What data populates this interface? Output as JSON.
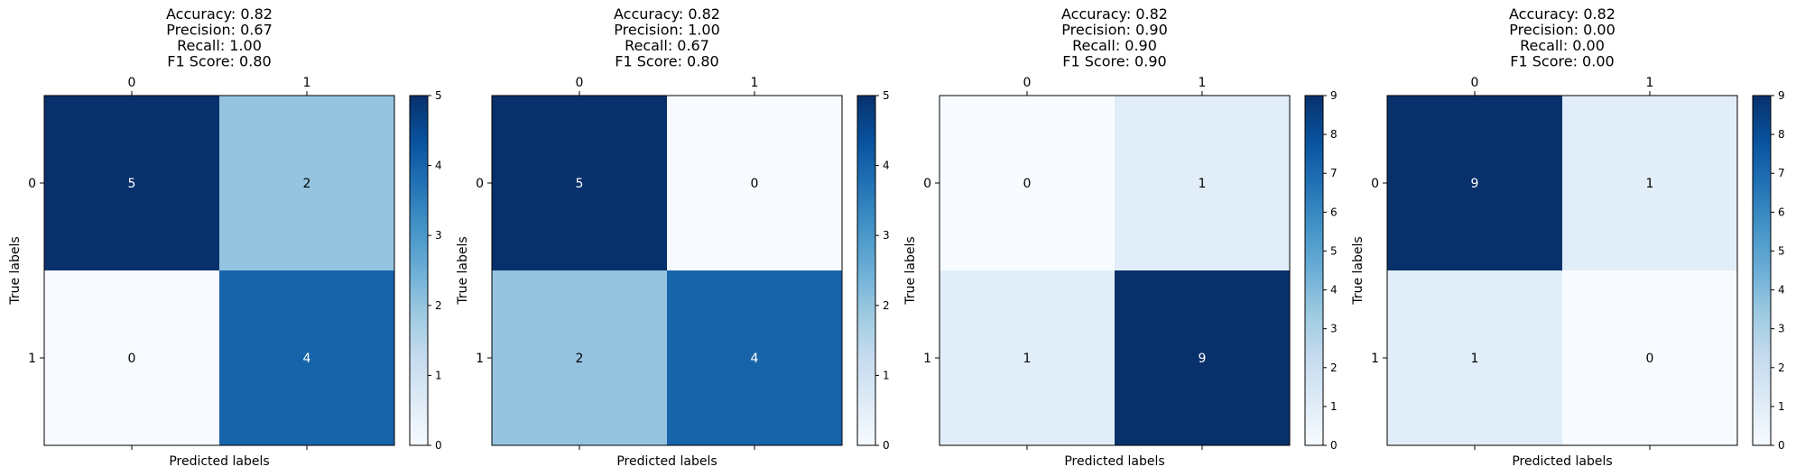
{
  "chart_data": [
    {
      "type": "heatmap",
      "title_lines": [
        "Accuracy:  0.82",
        "Precision:  0.67",
        "Recall:     1.00",
        "F1 Score:  0.80"
      ],
      "x_ticks": [
        "0",
        "1"
      ],
      "y_ticks": [
        "0",
        "1"
      ],
      "xlabel": "Predicted labels",
      "ylabel": "True labels",
      "matrix": [
        [
          5,
          2
        ],
        [
          0,
          4
        ]
      ],
      "vmin": 0,
      "vmax": 5,
      "colorbar_ticks": [
        "0",
        "1",
        "2",
        "3",
        "4",
        "5"
      ],
      "colormap": "Blues"
    },
    {
      "type": "heatmap",
      "title_lines": [
        "Accuracy:  0.82",
        "Precision:  1.00",
        "Recall:     0.67",
        "F1 Score:  0.80"
      ],
      "x_ticks": [
        "0",
        "1"
      ],
      "y_ticks": [
        "0",
        "1"
      ],
      "xlabel": "Predicted labels",
      "ylabel": "True labels",
      "matrix": [
        [
          5,
          0
        ],
        [
          2,
          4
        ]
      ],
      "vmin": 0,
      "vmax": 5,
      "colorbar_ticks": [
        "0",
        "1",
        "2",
        "3",
        "4",
        "5"
      ],
      "colormap": "Blues"
    },
    {
      "type": "heatmap",
      "title_lines": [
        "Accuracy:  0.82",
        "Precision:  0.90",
        "Recall:     0.90",
        "F1 Score:  0.90"
      ],
      "x_ticks": [
        "0",
        "1"
      ],
      "y_ticks": [
        "0",
        "1"
      ],
      "xlabel": "Predicted labels",
      "ylabel": "True labels",
      "matrix": [
        [
          0,
          1
        ],
        [
          1,
          9
        ]
      ],
      "vmin": 0,
      "vmax": 9,
      "colorbar_ticks": [
        "0",
        "1",
        "2",
        "3",
        "4",
        "5",
        "6",
        "7",
        "8",
        "9"
      ],
      "colormap": "Blues"
    },
    {
      "type": "heatmap",
      "title_lines": [
        "Accuracy:  0.82",
        "Precision:  0.00",
        "Recall:     0.00",
        "F1 Score:  0.00"
      ],
      "x_ticks": [
        "0",
        "1"
      ],
      "y_ticks": [
        "0",
        "1"
      ],
      "xlabel": "Predicted labels",
      "ylabel": "True labels",
      "matrix": [
        [
          9,
          1
        ],
        [
          1,
          0
        ]
      ],
      "vmin": 0,
      "vmax": 9,
      "colorbar_ticks": [
        "0",
        "1",
        "2",
        "3",
        "4",
        "5",
        "6",
        "7",
        "8",
        "9"
      ],
      "colormap": "Blues"
    }
  ]
}
